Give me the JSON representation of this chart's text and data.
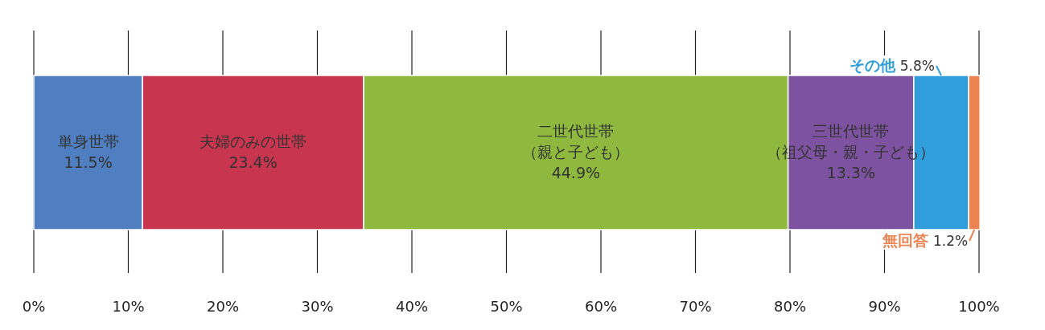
{
  "chart_data": {
    "type": "bar",
    "orientation": "horizontal",
    "stacked": true,
    "categories": [
      null
    ],
    "series": [
      {
        "name": "単身世帯",
        "color": "#4f7fc0",
        "values": [
          11.5
        ],
        "value_labels": [
          "11.5%"
        ]
      },
      {
        "name": "夫婦のみの世帯",
        "color": "#c8354f",
        "values": [
          23.4
        ],
        "value_labels": [
          "23.4%"
        ]
      },
      {
        "name": "二世代世帯（親と子ども）",
        "color": "#8fb83e",
        "values": [
          44.9
        ],
        "value_labels": [
          "44.9%"
        ]
      },
      {
        "name": "三世代世帯（祖父母・親・子ども）",
        "color": "#7d52a0",
        "values": [
          13.3
        ],
        "value_labels": [
          "13.3%"
        ]
      },
      {
        "name": "その他",
        "color": "#2f9edb",
        "values": [
          5.8
        ],
        "value_labels": [
          "5.8%"
        ]
      },
      {
        "name": "無回答",
        "color": "#ec8452",
        "values": [
          1.2
        ],
        "value_labels": [
          "1.2%"
        ]
      }
    ],
    "xlim": [
      0,
      100
    ],
    "xticks": [
      {
        "value": 0,
        "label": "0%"
      },
      {
        "value": 10,
        "label": "10%"
      },
      {
        "value": 20,
        "label": "20%"
      },
      {
        "value": 30,
        "label": "30%"
      },
      {
        "value": 40,
        "label": "40%"
      },
      {
        "value": 50,
        "label": "50%"
      },
      {
        "value": 60,
        "label": "60%"
      },
      {
        "value": 70,
        "label": "70%"
      },
      {
        "value": 80,
        "label": "80%"
      },
      {
        "value": 90,
        "label": "90%"
      },
      {
        "value": 100,
        "label": "100%"
      }
    ],
    "grid": "x"
  }
}
